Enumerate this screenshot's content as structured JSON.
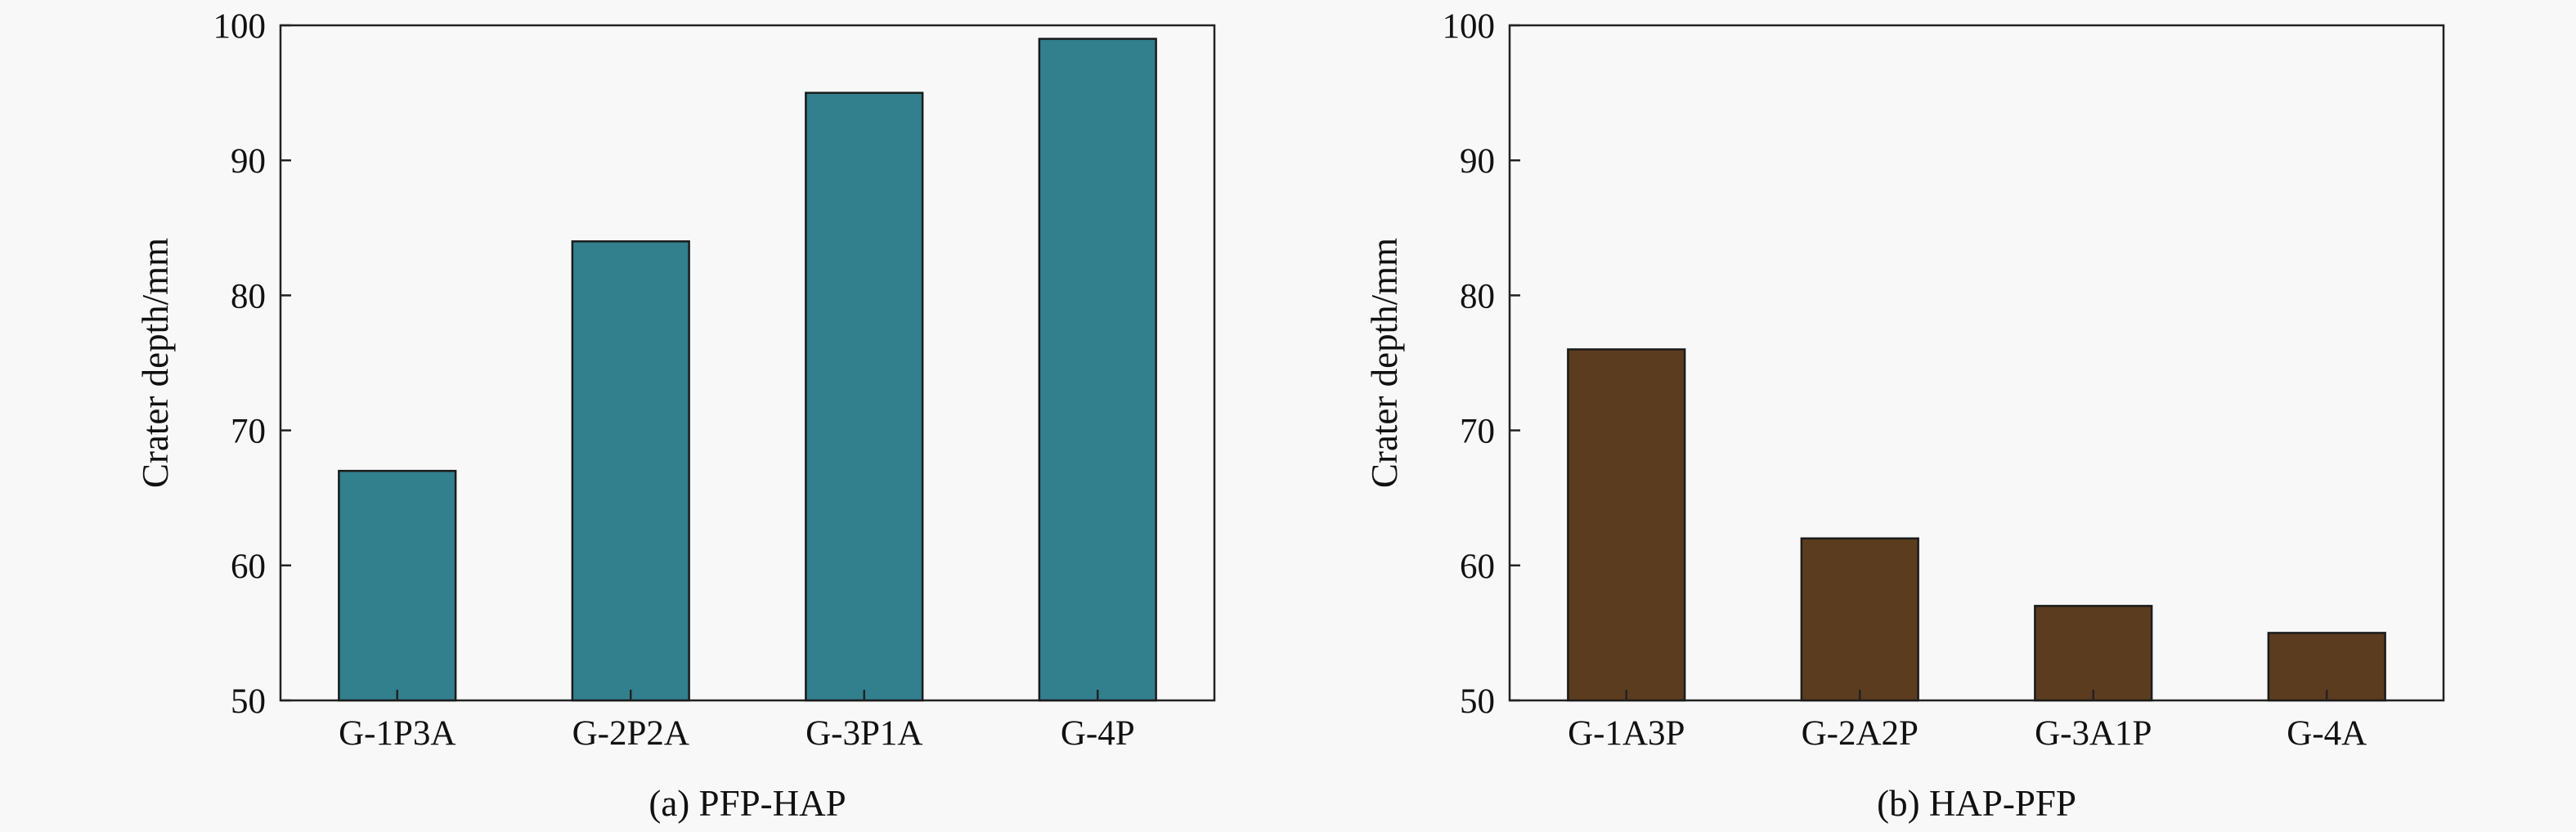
{
  "chart_data": [
    {
      "type": "bar",
      "categories": [
        "G-1P3A",
        "G-2P2A",
        "G-3P1A",
        "G-4P"
      ],
      "values": [
        67,
        84,
        95,
        99
      ],
      "ylabel": "Crater depth/mm",
      "xlabel": "(a) PFP-HAP",
      "ylim": [
        50,
        100
      ],
      "yticks": [
        50,
        60,
        70,
        80,
        90,
        100
      ],
      "bar_color": "#327f8e",
      "grid": false
    },
    {
      "type": "bar",
      "categories": [
        "G-1A3P",
        "G-2A2P",
        "G-3A1P",
        "G-4A"
      ],
      "values": [
        76,
        62,
        57,
        55
      ],
      "ylabel": "Crater depth/mm",
      "xlabel": "(b) HAP-PFP",
      "ylim": [
        50,
        100
      ],
      "yticks": [
        50,
        60,
        70,
        80,
        90,
        100
      ],
      "bar_color": "#5c3c1f",
      "grid": false
    }
  ]
}
